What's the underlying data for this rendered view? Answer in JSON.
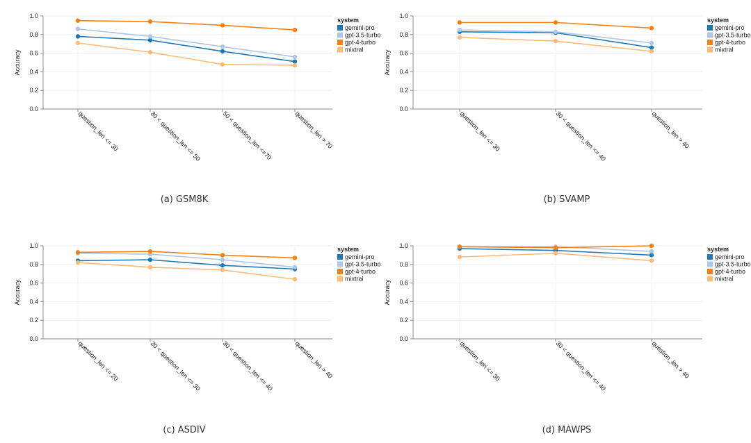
{
  "chart_data": [
    {
      "type": "line",
      "caption": "(a) GSM8K",
      "ylabel": "Accuracy",
      "ylim": [
        0,
        1
      ],
      "yticks": [
        "0.0",
        "0.2",
        "0.4",
        "0.6",
        "0.8",
        "1.0"
      ],
      "categories": [
        "question_len <= 30",
        "30 < question_len <= 50",
        "50 < question_len <=70",
        "question_len > 70"
      ],
      "legend_title": "system",
      "series": [
        {
          "name": "gemini-pro",
          "color": "#1f77b4",
          "values": [
            0.78,
            0.74,
            0.62,
            0.51
          ]
        },
        {
          "name": "gpt-3.5-turbo",
          "color": "#aec7e8",
          "values": [
            0.86,
            0.78,
            0.67,
            0.56
          ]
        },
        {
          "name": "gpt-4-turbo",
          "color": "#ff7f0e",
          "values": [
            0.95,
            0.94,
            0.9,
            0.85
          ]
        },
        {
          "name": "mixtral",
          "color": "#ffbb78",
          "values": [
            0.71,
            0.61,
            0.48,
            0.47
          ]
        }
      ]
    },
    {
      "type": "line",
      "caption": "(b) SVAMP",
      "ylabel": "Accuracy",
      "ylim": [
        0,
        1
      ],
      "yticks": [
        "0.0",
        "0.2",
        "0.4",
        "0.6",
        "0.8",
        "1.0"
      ],
      "categories": [
        "question_len <= 30",
        "30 < question_len <= 40",
        "question_len > 40"
      ],
      "legend_title": "system",
      "series": [
        {
          "name": "gemini-pro",
          "color": "#1f77b4",
          "values": [
            0.83,
            0.82,
            0.66
          ]
        },
        {
          "name": "gpt-3.5-turbo",
          "color": "#aec7e8",
          "values": [
            0.85,
            0.83,
            0.71
          ]
        },
        {
          "name": "gpt-4-turbo",
          "color": "#ff7f0e",
          "values": [
            0.93,
            0.93,
            0.87
          ]
        },
        {
          "name": "mixtral",
          "color": "#ffbb78",
          "values": [
            0.77,
            0.73,
            0.62
          ]
        }
      ]
    },
    {
      "type": "line",
      "caption": "(c) ASDIV",
      "ylabel": "Accuracy",
      "ylim": [
        0,
        1
      ],
      "yticks": [
        "0.0",
        "0.2",
        "0.4",
        "0.6",
        "0.8",
        "1.0"
      ],
      "categories": [
        "question_len <= 20",
        "20 < question_len <= 30",
        "30 < question_len <= 40",
        "question_len > 40"
      ],
      "legend_title": "system",
      "series": [
        {
          "name": "gemini-pro",
          "color": "#1f77b4",
          "values": [
            0.84,
            0.85,
            0.79,
            0.75
          ]
        },
        {
          "name": "gpt-3.5-turbo",
          "color": "#aec7e8",
          "values": [
            0.92,
            0.91,
            0.85,
            0.77
          ]
        },
        {
          "name": "gpt-4-turbo",
          "color": "#ff7f0e",
          "values": [
            0.93,
            0.94,
            0.9,
            0.87
          ]
        },
        {
          "name": "mixtral",
          "color": "#ffbb78",
          "values": [
            0.82,
            0.77,
            0.74,
            0.64
          ]
        }
      ]
    },
    {
      "type": "line",
      "caption": "(d) MAWPS",
      "ylabel": "Accuracy",
      "ylim": [
        0,
        1
      ],
      "yticks": [
        "0.0",
        "0.2",
        "0.4",
        "0.6",
        "0.8",
        "1.0"
      ],
      "categories": [
        "question_len <= 30",
        "30 < question_len <= 40",
        "question_len > 40"
      ],
      "legend_title": "system",
      "series": [
        {
          "name": "gemini-pro",
          "color": "#1f77b4",
          "values": [
            0.97,
            0.95,
            0.9
          ]
        },
        {
          "name": "gpt-3.5-turbo",
          "color": "#aec7e8",
          "values": [
            0.99,
            0.99,
            0.94
          ]
        },
        {
          "name": "gpt-4-turbo",
          "color": "#ff7f0e",
          "values": [
            0.99,
            0.98,
            1.0
          ]
        },
        {
          "name": "mixtral",
          "color": "#ffbb78",
          "values": [
            0.88,
            0.92,
            0.84
          ]
        }
      ]
    }
  ]
}
